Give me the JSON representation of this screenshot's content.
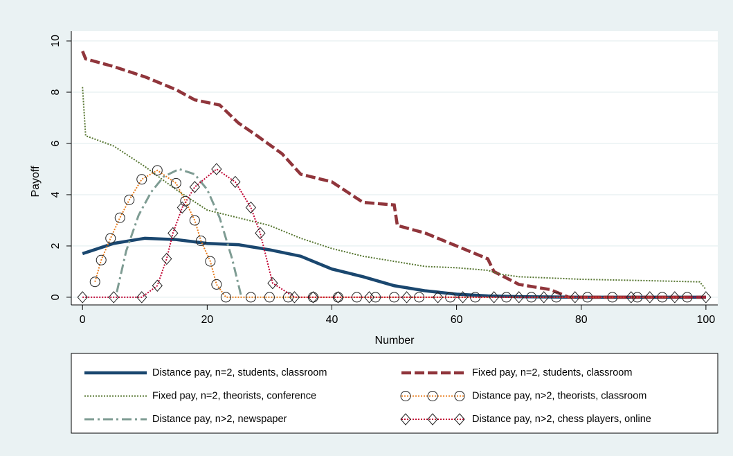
{
  "chart_data": {
    "type": "line",
    "x_label": "Number",
    "y_label": "Payoff",
    "xlim": [
      -1.8,
      101.9
    ],
    "ylim": [
      -0.3,
      10.38
    ],
    "xticks": [
      0,
      20,
      40,
      60,
      80,
      100
    ],
    "yticks": [
      0,
      2,
      4,
      6,
      8,
      10
    ],
    "grid": true,
    "series": [
      {
        "name": "Distance pay, n=2, students, classroom",
        "color": "#1a476f",
        "dash": "solid",
        "marker": null,
        "x": [
          0,
          5,
          10,
          15,
          20,
          25,
          30,
          35,
          40,
          45,
          50,
          55,
          60,
          65,
          70,
          80,
          100
        ],
        "values": [
          1.7,
          2.1,
          2.3,
          2.25,
          2.1,
          2.05,
          1.85,
          1.6,
          1.1,
          0.8,
          0.45,
          0.25,
          0.12,
          0.05,
          0.02,
          0,
          0
        ]
      },
      {
        "name": "Fixed pay, n=2, students, classroom",
        "color": "#90353b",
        "dash": "dash",
        "marker": null,
        "x": [
          0,
          0.5,
          5,
          10,
          15,
          18,
          22,
          25,
          28,
          32,
          35,
          40,
          45,
          50,
          50.5,
          55,
          60,
          65,
          66,
          70,
          75,
          77,
          78,
          100
        ],
        "values": [
          9.6,
          9.3,
          9,
          8.6,
          8.1,
          7.7,
          7.5,
          6.8,
          6.3,
          5.6,
          4.8,
          4.5,
          3.7,
          3.6,
          2.8,
          2.5,
          2,
          1.5,
          1,
          0.5,
          0.3,
          0.1,
          0,
          0
        ]
      },
      {
        "name": "Fixed pay, n=2, theorists, conference",
        "color": "#55752f",
        "dash": "dot",
        "marker": null,
        "x": [
          0,
          0.5,
          5,
          10,
          15,
          20,
          25,
          30,
          35,
          40,
          45,
          50,
          55,
          60,
          65,
          67,
          70,
          80,
          90,
          99,
          100
        ],
        "values": [
          8.2,
          6.3,
          5.9,
          5.1,
          4.2,
          3.4,
          3.1,
          2.8,
          2.3,
          1.9,
          1.6,
          1.4,
          1.2,
          1.15,
          1.05,
          0.9,
          0.8,
          0.7,
          0.65,
          0.6,
          0.3
        ]
      },
      {
        "name": "Distance pay, n>2, theorists, classroom",
        "color": "#e87d1e",
        "dash": "dot",
        "marker": "circle",
        "x": [
          2,
          3,
          4.5,
          6,
          7.5,
          9.5,
          12,
          15,
          16.5,
          18,
          19,
          20.5,
          21.5,
          23,
          27,
          30,
          33,
          37,
          41,
          44,
          47,
          50,
          54,
          59,
          63,
          68,
          72,
          76,
          81,
          85,
          89,
          93,
          97
        ],
        "values": [
          0.6,
          1.45,
          2.3,
          3.1,
          3.8,
          4.6,
          4.95,
          4.45,
          3.75,
          3,
          2.2,
          1.4,
          0.5,
          0,
          0,
          0,
          0,
          0,
          0,
          0,
          0,
          0,
          0,
          0,
          0,
          0,
          0,
          0,
          0,
          0,
          0,
          0,
          0
        ]
      },
      {
        "name": "Distance pay, n>2, newspaper",
        "color": "#7e9c93",
        "dash": "dashdot",
        "marker": null,
        "x": [
          5.5,
          7,
          9,
          11,
          13,
          15.5,
          18,
          20,
          22,
          24,
          25.5
        ],
        "values": [
          0.2,
          1.8,
          3.2,
          4.1,
          4.7,
          5,
          4.8,
          4.2,
          3.1,
          1.5,
          0
        ]
      },
      {
        "name": "Distance pay, n>2, chess players, online",
        "color": "#c10534",
        "dash": "dot",
        "marker": "diamond",
        "x": [
          0,
          5,
          9.5,
          12,
          13.5,
          14.5,
          16,
          18,
          21.5,
          24.5,
          27,
          28.5,
          30.5,
          34,
          37,
          41,
          46,
          52,
          57,
          61,
          66,
          70,
          74,
          79,
          88,
          91,
          95,
          100
        ],
        "values": [
          0,
          0,
          0,
          0.45,
          1.5,
          2.5,
          3.5,
          4.3,
          5,
          4.5,
          3.5,
          2.5,
          0.55,
          0,
          0,
          0,
          0,
          0,
          0,
          0,
          0,
          0,
          0,
          0,
          0,
          0,
          0,
          0
        ]
      }
    ]
  }
}
